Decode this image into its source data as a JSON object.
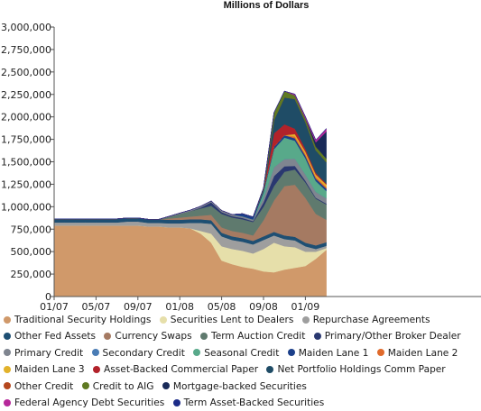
{
  "chart_data": {
    "type": "area",
    "title": "Millions of Dollars",
    "xlabel": "",
    "ylabel": "",
    "ylim": [
      0,
      3000000
    ],
    "y_ticks": [
      "0",
      "250,000",
      "500,000",
      "750,000",
      "1,000,000",
      "1,250,000",
      "1,500,000",
      "1,750,000",
      "2,000,000",
      "2,250,000",
      "2,500,000",
      "2,750,000",
      "3,000,000"
    ],
    "x_ticks": [
      "01/07",
      "05/07",
      "09/07",
      "01/08",
      "05/08",
      "09/08",
      "01/09"
    ],
    "x": [
      "01/07",
      "02/07",
      "03/07",
      "04/07",
      "05/07",
      "06/07",
      "07/07",
      "08/07",
      "09/07",
      "10/07",
      "11/07",
      "12/07",
      "01/08",
      "02/08",
      "03/08",
      "04/08",
      "05/08",
      "06/08",
      "07/08",
      "08/08",
      "09/08",
      "10/08",
      "11/08",
      "12/08",
      "01/09",
      "02/09",
      "03/09"
    ],
    "grid": false,
    "legend_position": "bottom",
    "series": [
      {
        "name": "Traditional Security Holdings",
        "color": "#d0996a",
        "values": [
          790000,
          790000,
          790000,
          790000,
          790000,
          790000,
          790000,
          790000,
          790000,
          780000,
          780000,
          770000,
          770000,
          760000,
          700000,
          600000,
          400000,
          360000,
          330000,
          310000,
          280000,
          270000,
          300000,
          320000,
          340000,
          420000,
          520000
        ]
      },
      {
        "name": "Securities Lent to Dealers",
        "color": "#e6dfaa",
        "values": [
          0,
          0,
          0,
          0,
          0,
          0,
          0,
          0,
          0,
          0,
          0,
          0,
          0,
          0,
          30000,
          100000,
          160000,
          170000,
          180000,
          170000,
          250000,
          330000,
          260000,
          230000,
          160000,
          80000,
          20000
        ]
      },
      {
        "name": "Repurchase Agreements",
        "color": "#9e9e9e",
        "values": [
          35000,
          35000,
          35000,
          35000,
          35000,
          35000,
          35000,
          45000,
          45000,
          40000,
          40000,
          45000,
          45000,
          60000,
          90000,
          110000,
          110000,
          100000,
          100000,
          100000,
          100000,
          80000,
          80000,
          75000,
          60000,
          30000,
          25000
        ]
      },
      {
        "name": "Other Fed Assets",
        "color": "#1e4f73",
        "values": [
          40000,
          40000,
          40000,
          40000,
          40000,
          40000,
          40000,
          40000,
          40000,
          40000,
          40000,
          40000,
          40000,
          40000,
          40000,
          40000,
          40000,
          40000,
          40000,
          40000,
          40000,
          40000,
          40000,
          40000,
          40000,
          40000,
          40000
        ]
      },
      {
        "name": "Currency Swaps",
        "color": "#a57a62",
        "values": [
          0,
          0,
          0,
          0,
          0,
          0,
          0,
          0,
          0,
          0,
          0,
          14000,
          24000,
          30000,
          40000,
          60000,
          60000,
          60000,
          60000,
          60000,
          180000,
          350000,
          550000,
          580000,
          500000,
          350000,
          250000
        ]
      },
      {
        "name": "Term Auction Credit",
        "color": "#5f7a6e",
        "values": [
          0,
          0,
          0,
          0,
          0,
          0,
          0,
          0,
          0,
          0,
          0,
          20000,
          40000,
          60000,
          80000,
          100000,
          150000,
          150000,
          150000,
          150000,
          150000,
          160000,
          160000,
          170000,
          170000,
          170000,
          170000
        ]
      },
      {
        "name": "Primary/Other Broker Dealer",
        "color": "#2a3870",
        "values": [
          0,
          0,
          0,
          0,
          0,
          0,
          0,
          0,
          0,
          0,
          0,
          0,
          0,
          0,
          10000,
          40000,
          20000,
          15000,
          15000,
          10000,
          50000,
          110000,
          60000,
          40000,
          20000,
          10000,
          10000
        ]
      },
      {
        "name": "Primary Credit",
        "color": "#7f8590",
        "values": [
          0,
          0,
          0,
          0,
          0,
          0,
          0,
          0,
          0,
          0,
          0,
          5000,
          10000,
          12000,
          15000,
          15000,
          18000,
          18000,
          18000,
          18000,
          50000,
          100000,
          80000,
          80000,
          70000,
          65000,
          60000
        ]
      },
      {
        "name": "Secondary Credit",
        "color": "#4a7cb5",
        "values": [
          0,
          0,
          0,
          0,
          0,
          0,
          0,
          0,
          0,
          0,
          0,
          0,
          0,
          0,
          0,
          0,
          0,
          0,
          0,
          0,
          0,
          0,
          0,
          0,
          0,
          0,
          0
        ]
      },
      {
        "name": "Seasonal Credit",
        "color": "#58a98a",
        "values": [
          0,
          0,
          0,
          0,
          0,
          0,
          0,
          0,
          0,
          0,
          0,
          0,
          0,
          0,
          0,
          0,
          0,
          0,
          0,
          0,
          60000,
          200000,
          240000,
          200000,
          180000,
          120000,
          80000
        ]
      },
      {
        "name": "Maiden Lane 1",
        "color": "#1b3f8a",
        "values": [
          0,
          0,
          0,
          0,
          0,
          0,
          0,
          0,
          0,
          0,
          0,
          0,
          0,
          0,
          0,
          0,
          0,
          0,
          29000,
          29000,
          29000,
          27000,
          27000,
          27000,
          27000,
          27000,
          27000
        ]
      },
      {
        "name": "Maiden Lane 2",
        "color": "#e06a2b",
        "values": [
          0,
          0,
          0,
          0,
          0,
          0,
          0,
          0,
          0,
          0,
          0,
          0,
          0,
          0,
          0,
          0,
          0,
          0,
          0,
          0,
          0,
          0,
          0,
          20000,
          20000,
          19000,
          18000
        ]
      },
      {
        "name": "Maiden Lane 3",
        "color": "#e2b22b",
        "values": [
          0,
          0,
          0,
          0,
          0,
          0,
          0,
          0,
          0,
          0,
          0,
          0,
          0,
          0,
          0,
          0,
          0,
          0,
          0,
          0,
          0,
          0,
          0,
          27000,
          27000,
          27000,
          26000
        ]
      },
      {
        "name": "Asset-Backed Commercial Paper",
        "color": "#b2222a",
        "values": [
          0,
          0,
          0,
          0,
          0,
          0,
          0,
          0,
          0,
          0,
          0,
          0,
          0,
          0,
          0,
          0,
          0,
          0,
          0,
          0,
          0,
          150000,
          120000,
          60000,
          30000,
          20000,
          10000
        ]
      },
      {
        "name": "Net Portfolio Holdings Comm Paper",
        "color": "#1f4c66",
        "values": [
          0,
          0,
          0,
          0,
          0,
          0,
          0,
          0,
          0,
          0,
          0,
          0,
          0,
          0,
          0,
          0,
          0,
          0,
          0,
          0,
          0,
          150000,
          300000,
          330000,
          300000,
          250000,
          240000
        ]
      },
      {
        "name": "Other Credit",
        "color": "#b5471d",
        "values": [
          0,
          0,
          0,
          0,
          0,
          0,
          0,
          0,
          0,
          0,
          0,
          0,
          0,
          0,
          0,
          0,
          0,
          0,
          0,
          0,
          0,
          0,
          0,
          0,
          0,
          0,
          0
        ]
      },
      {
        "name": "Credit to AIG",
        "color": "#5f7a22",
        "values": [
          0,
          0,
          0,
          0,
          0,
          0,
          0,
          0,
          0,
          0,
          0,
          0,
          0,
          0,
          0,
          0,
          0,
          0,
          0,
          0,
          20000,
          80000,
          70000,
          40000,
          40000,
          40000,
          40000
        ]
      },
      {
        "name": "Mortgage-backed Securities",
        "color": "#182a58",
        "values": [
          0,
          0,
          0,
          0,
          0,
          0,
          0,
          0,
          0,
          0,
          0,
          0,
          0,
          0,
          0,
          0,
          0,
          0,
          0,
          0,
          0,
          0,
          0,
          0,
          0,
          50000,
          300000
        ]
      },
      {
        "name": "Federal Agency Debt Securities",
        "color": "#b6289a",
        "values": [
          0,
          0,
          0,
          0,
          0,
          0,
          0,
          0,
          0,
          0,
          0,
          0,
          0,
          0,
          0,
          0,
          0,
          0,
          0,
          0,
          0,
          0,
          0,
          15000,
          20000,
          25000,
          30000
        ]
      },
      {
        "name": "Term Asset-Backed Securities",
        "color": "#1c2c88",
        "values": [
          0,
          0,
          0,
          0,
          0,
          0,
          0,
          0,
          0,
          0,
          0,
          0,
          0,
          0,
          0,
          0,
          0,
          0,
          0,
          0,
          0,
          0,
          0,
          0,
          0,
          0,
          5000
        ]
      }
    ]
  }
}
